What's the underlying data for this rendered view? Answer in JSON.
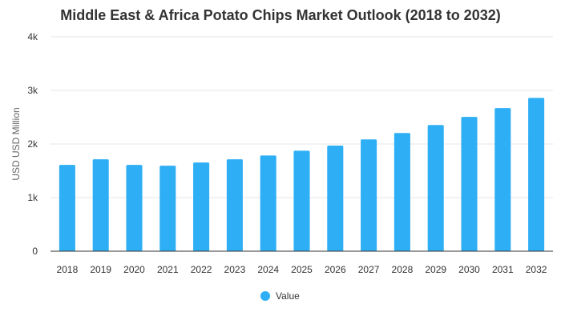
{
  "chart_data": {
    "type": "bar",
    "title": "Middle East & Africa Potato Chips Market Outlook (2018 to 2032)",
    "xlabel": "",
    "ylabel": "USD USD Million",
    "categories": [
      "2018",
      "2019",
      "2020",
      "2021",
      "2022",
      "2023",
      "2024",
      "2025",
      "2026",
      "2027",
      "2028",
      "2029",
      "2030",
      "2031",
      "2032"
    ],
    "series": [
      {
        "name": "Value",
        "values": [
          1610,
          1715,
          1610,
          1595,
          1655,
          1715,
          1785,
          1875,
          1970,
          2085,
          2205,
          2355,
          2505,
          2670,
          2860
        ]
      }
    ],
    "ylim": [
      0,
      4000
    ],
    "yticks": [
      0,
      1000,
      2000,
      3000,
      4000
    ],
    "ytick_labels": [
      "0",
      "1k",
      "2k",
      "3k",
      "4k"
    ],
    "grid": true,
    "legend_position": "bottom",
    "colors": {
      "bar": "#2eaff5",
      "grid": "#e6e6e6",
      "axis": "#333333"
    }
  }
}
